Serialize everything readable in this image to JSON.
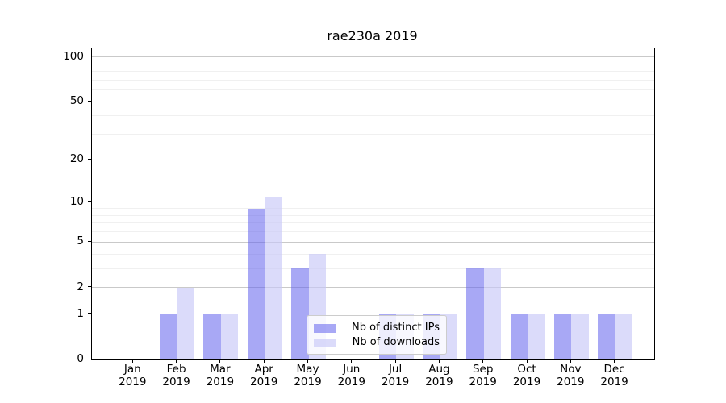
{
  "title": "rae230a 2019",
  "chart_data": {
    "type": "bar",
    "title": "rae230a 2019",
    "xlabel": "",
    "ylabel": "",
    "scale": "log1p",
    "grid": true,
    "ylim": [
      0,
      114
    ],
    "y_ticks_major": [
      0,
      1,
      2,
      5,
      10,
      20,
      50,
      100
    ],
    "y_ticks_minor": [
      3,
      4,
      6,
      7,
      8,
      9,
      30,
      40,
      60,
      70,
      80,
      90
    ],
    "categories": [
      "Jan",
      "Feb",
      "Mar",
      "Apr",
      "May",
      "Jun",
      "Jul",
      "Aug",
      "Sep",
      "Oct",
      "Nov",
      "Dec"
    ],
    "year_label": "2019",
    "series": [
      {
        "name": "Nb of distinct IPs",
        "color": "rgba(100,100,238,0.56)",
        "values": [
          0,
          1,
          1,
          9,
          3,
          0,
          1,
          1,
          3,
          1,
          1,
          1
        ]
      },
      {
        "name": "Nb of downloads",
        "color": "rgba(200,200,247,0.65)",
        "values": [
          0,
          2,
          1,
          11,
          4,
          0,
          1,
          1,
          3,
          1,
          1,
          1
        ]
      }
    ],
    "legend_position": "lower center inside plot"
  }
}
